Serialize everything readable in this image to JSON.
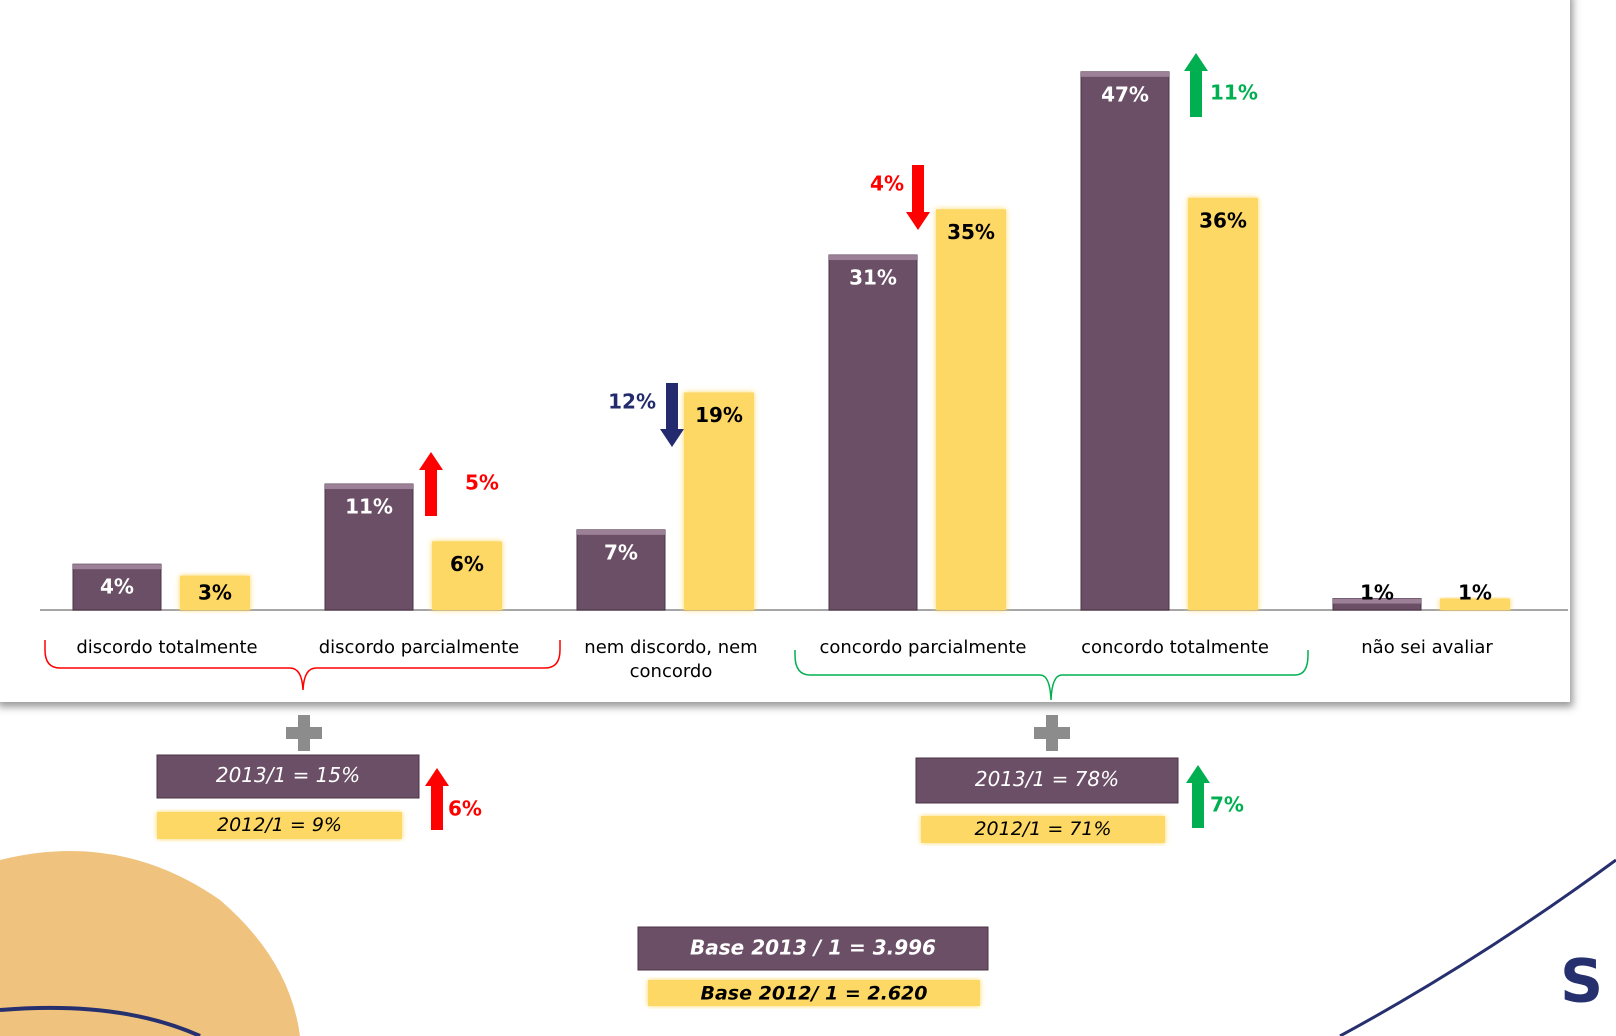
{
  "chart_data": {
    "type": "bar",
    "categories": [
      "discordo totalmente",
      "discordo parcialmente",
      "nem discordo, nem concordo",
      "concordo parcialmente",
      "concordo totalmente",
      "não sei avaliar"
    ],
    "series": [
      {
        "color": "#6b4f66",
        "values": [
          4,
          11,
          7,
          31,
          47,
          1
        ],
        "value_labels": [
          "4%",
          "11%",
          "7%",
          "31%",
          "47%",
          "1%"
        ]
      },
      {
        "color": "#fed865",
        "values": [
          3,
          6,
          19,
          35,
          36,
          1
        ],
        "value_labels": [
          "3%",
          "6%",
          "19%",
          "35%",
          "36%",
          "1%"
        ]
      }
    ],
    "annotations": [
      {
        "text": "5%",
        "direction": "up",
        "color": "#ff0000"
      },
      {
        "text": "12%",
        "direction": "down",
        "color": "#232a6e"
      },
      {
        "text": "4%",
        "direction": "down",
        "color": "#ff0000"
      },
      {
        "text": "11%",
        "direction": "up",
        "color": "#00b050"
      }
    ],
    "summaries": [
      {
        "current": "2013/1 = 15%",
        "previous": "2012/1 = 9%",
        "change": "6%",
        "direction": "up",
        "color": "#ff0000"
      },
      {
        "current": "2013/1 = 78%",
        "previous": "2012/1 = 71%",
        "change": "7%",
        "direction": "up",
        "color": "#00b050"
      }
    ],
    "bases": [
      "Base 2013 / 1 = 3.996",
      "Base 2012/ 1 = 2.620"
    ]
  }
}
